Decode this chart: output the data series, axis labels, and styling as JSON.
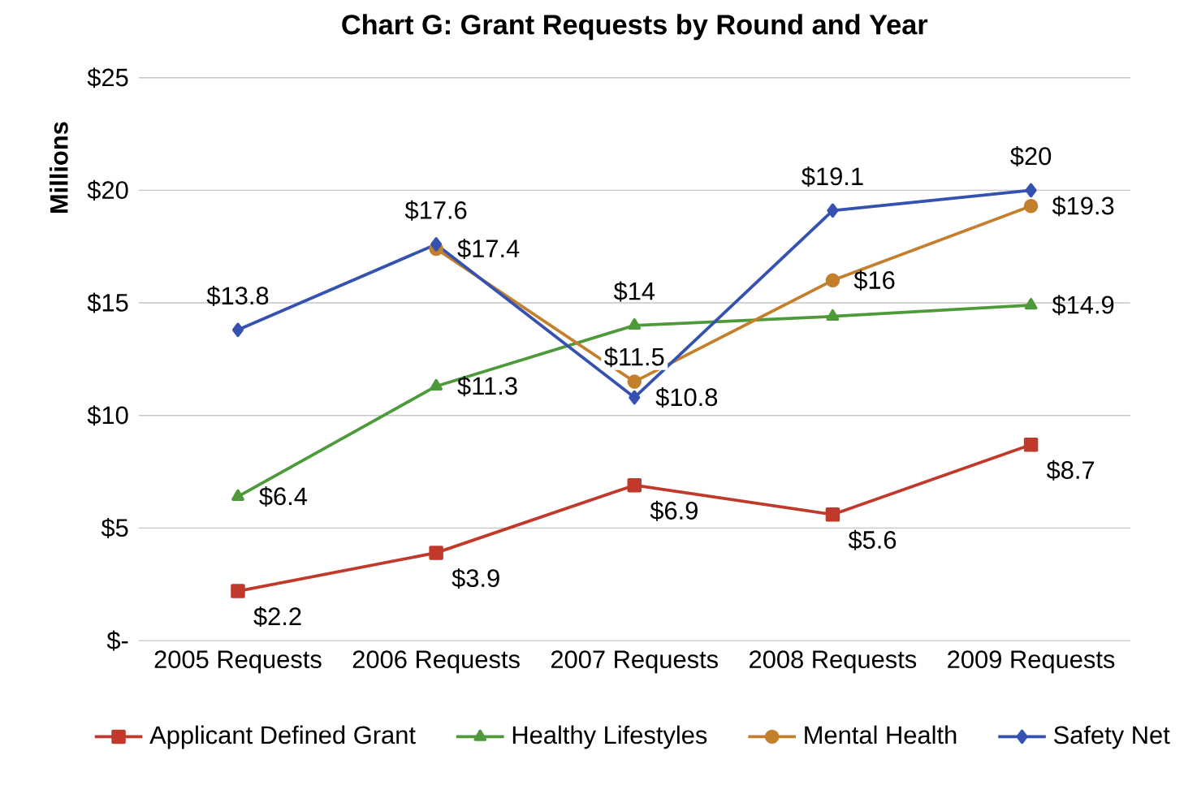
{
  "chart_data": {
    "type": "line",
    "title": "Chart G: Grant Requests by Round and Year",
    "ylabel": "Millions",
    "categories": [
      "2005 Requests",
      "2006 Requests",
      "2007 Requests",
      "2008 Requests",
      "2009 Requests"
    ],
    "series": [
      {
        "name": "Applicant Defined Grant",
        "color": "#c0392b",
        "marker": "square",
        "values": [
          2.2,
          3.9,
          6.9,
          5.6,
          8.7
        ],
        "value_labels": [
          "$2.2",
          "$3.9",
          "$6.9",
          "$5.6",
          "$8.7"
        ]
      },
      {
        "name": "Healthy Lifestyles",
        "color": "#4e9a3a",
        "marker": "triangle",
        "values": [
          6.4,
          11.3,
          14,
          14.4,
          14.9
        ],
        "value_labels": [
          "$6.4",
          "$11.3",
          "$14",
          null,
          "$14.9"
        ]
      },
      {
        "name": "Mental Health",
        "color": "#c47f2c",
        "marker": "circle",
        "values": [
          null,
          17.4,
          11.5,
          16,
          19.3
        ],
        "value_labels": [
          null,
          "$17.4",
          "$11.5",
          "$16",
          "$19.3"
        ]
      },
      {
        "name": "Safety Net",
        "color": "#3552b0",
        "marker": "diamond",
        "values": [
          13.8,
          17.6,
          10.8,
          19.1,
          20
        ],
        "value_labels": [
          "$13.8",
          "$17.6",
          "$10.8",
          "$19.1",
          "$20"
        ]
      }
    ],
    "ylim": [
      0,
      25
    ],
    "yticks": [
      {
        "value": 0,
        "label": "$-"
      },
      {
        "value": 5,
        "label": "$5"
      },
      {
        "value": 10,
        "label": "$10"
      },
      {
        "value": 15,
        "label": "$15"
      },
      {
        "value": 20,
        "label": "$20"
      },
      {
        "value": 25,
        "label": "$25"
      }
    ],
    "grid": "y",
    "legend": "bottom",
    "line_style": "solid"
  }
}
